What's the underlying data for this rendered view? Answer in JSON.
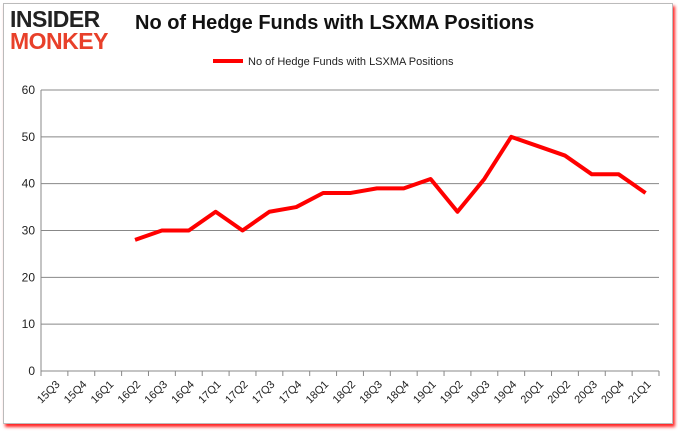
{
  "logo": {
    "line1": "INSIDER",
    "line2": "MONKEY"
  },
  "chart_data": {
    "type": "line",
    "title": "No of Hedge Funds with LSXMA Positions",
    "legend_position": "top",
    "grid": true,
    "ylim": [
      0,
      60
    ],
    "yticks": [
      0,
      10,
      20,
      30,
      40,
      50,
      60
    ],
    "categories": [
      "15Q3",
      "15Q4",
      "16Q1",
      "16Q2",
      "16Q3",
      "16Q4",
      "17Q1",
      "17Q2",
      "17Q3",
      "17Q4",
      "18Q1",
      "18Q2",
      "18Q3",
      "18Q4",
      "19Q1",
      "19Q2",
      "19Q3",
      "19Q4",
      "20Q1",
      "20Q2",
      "20Q3",
      "20Q4",
      "21Q1"
    ],
    "series": [
      {
        "name": "No of Hedge Funds with LSXMA Positions",
        "color": "#ff0000",
        "values": [
          null,
          null,
          null,
          28,
          30,
          30,
          34,
          30,
          34,
          35,
          38,
          38,
          39,
          39,
          41,
          34,
          41,
          50,
          48,
          46,
          42,
          42,
          38
        ]
      }
    ]
  }
}
